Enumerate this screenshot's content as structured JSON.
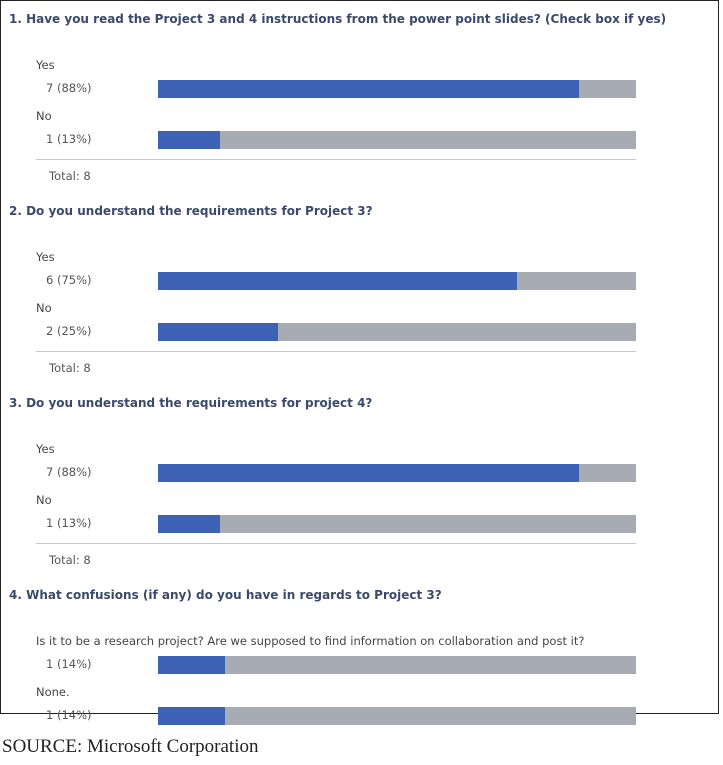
{
  "questions": [
    {
      "title": "1. Have you read the Project 3 and 4 instructions from the power point slides? (Check box if yes)",
      "options": [
        {
          "text": "Yes",
          "label": "7 (88%)",
          "percent": 88
        },
        {
          "text": "No",
          "label": "1 (13%)",
          "percent": 13
        }
      ],
      "total": "Total: 8"
    },
    {
      "title": "2. Do you understand the requirements for Project 3?",
      "options": [
        {
          "text": "Yes",
          "label": "6 (75%)",
          "percent": 75
        },
        {
          "text": "No",
          "label": "2 (25%)",
          "percent": 25
        }
      ],
      "total": "Total: 8"
    },
    {
      "title": "3. Do you understand the requirements for project 4?",
      "options": [
        {
          "text": "Yes",
          "label": "7 (88%)",
          "percent": 88
        },
        {
          "text": "No",
          "label": "1 (13%)",
          "percent": 13
        }
      ],
      "total": "Total: 8"
    },
    {
      "title": "4. What confusions (if any) do you have in regards to Project 3?",
      "options": [
        {
          "text": "Is it to be a research project? Are we supposed to find information on collaboration and post it?",
          "label": "1 (14%)",
          "percent": 14
        },
        {
          "text": "None.",
          "label": "1 (14%)",
          "percent": 14
        }
      ]
    }
  ],
  "source": "SOURCE: Microsoft Corporation"
}
